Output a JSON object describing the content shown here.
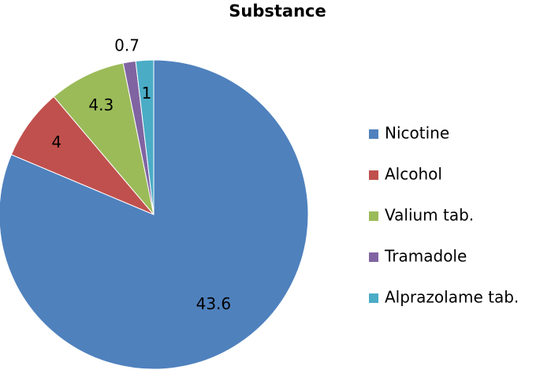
{
  "chart_data": {
    "type": "pie",
    "title": "Substance",
    "categories": [
      "Nicotine",
      "Alcohol",
      "Valium tab.",
      "Tramadole",
      "Alprazolame tab."
    ],
    "values": [
      43.6,
      4,
      4.3,
      0.7,
      1
    ],
    "colors": [
      "#4f81bd",
      "#c0504d",
      "#9bbb59",
      "#8064a2",
      "#4bacc6"
    ],
    "legend": "right"
  }
}
